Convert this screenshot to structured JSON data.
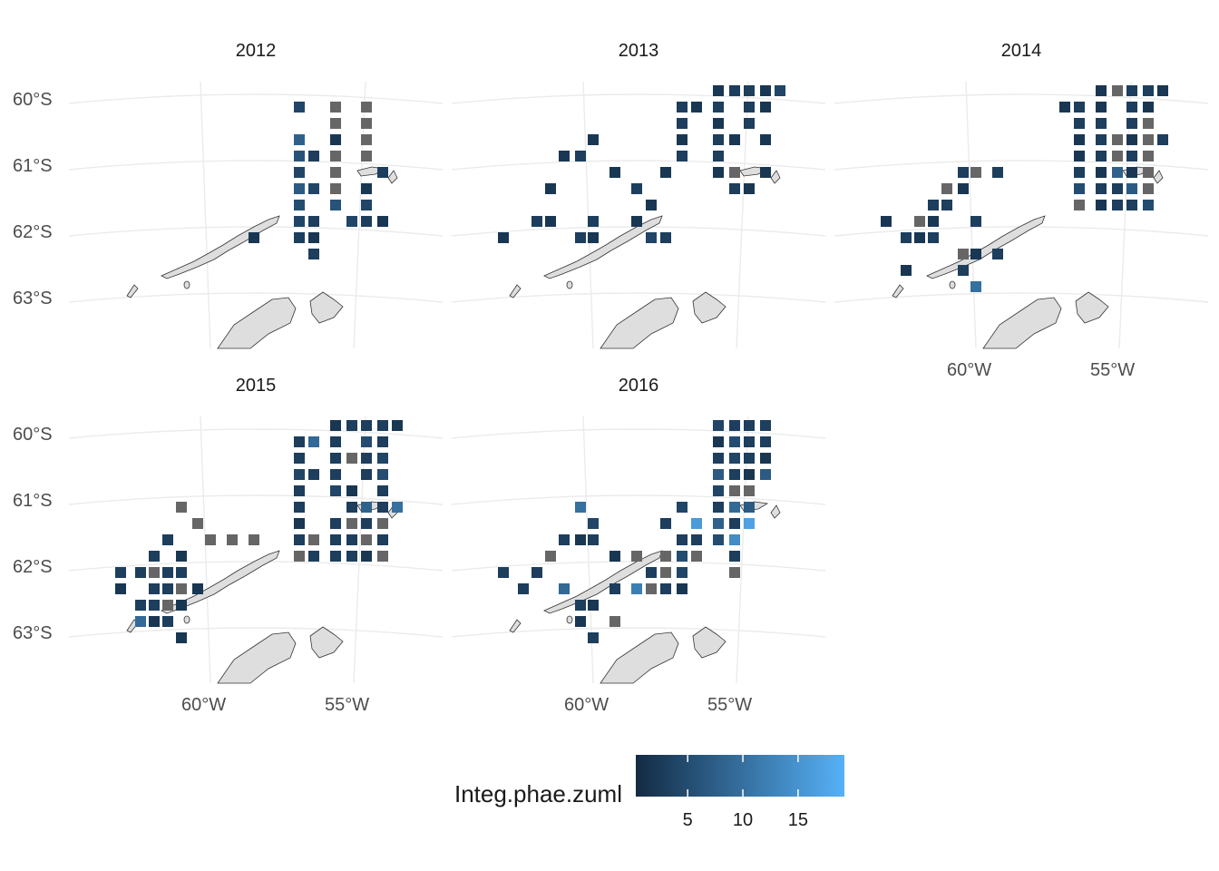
{
  "panels": [
    {
      "title": "2012"
    },
    {
      "title": "2013"
    },
    {
      "title": "2014"
    },
    {
      "title": "2015"
    },
    {
      "title": "2016"
    }
  ],
  "lat_labels": [
    "60°S",
    "61°S",
    "62°S",
    "63°S"
  ],
  "lon_labels": [
    "60°W",
    "55°W"
  ],
  "legend": {
    "title": "Integ.phae.zuml",
    "ticks": [
      "5",
      "10",
      "15"
    ],
    "tick_values": [
      5,
      10,
      15
    ],
    "range": [
      0.3,
      19.2
    ],
    "color_low": "#132b43",
    "color_high": "#56b1f7",
    "na_color": "#666666"
  },
  "colors": {
    "land": "#dedede",
    "grid": "#ebebeb",
    "na": "#666666"
  }
}
